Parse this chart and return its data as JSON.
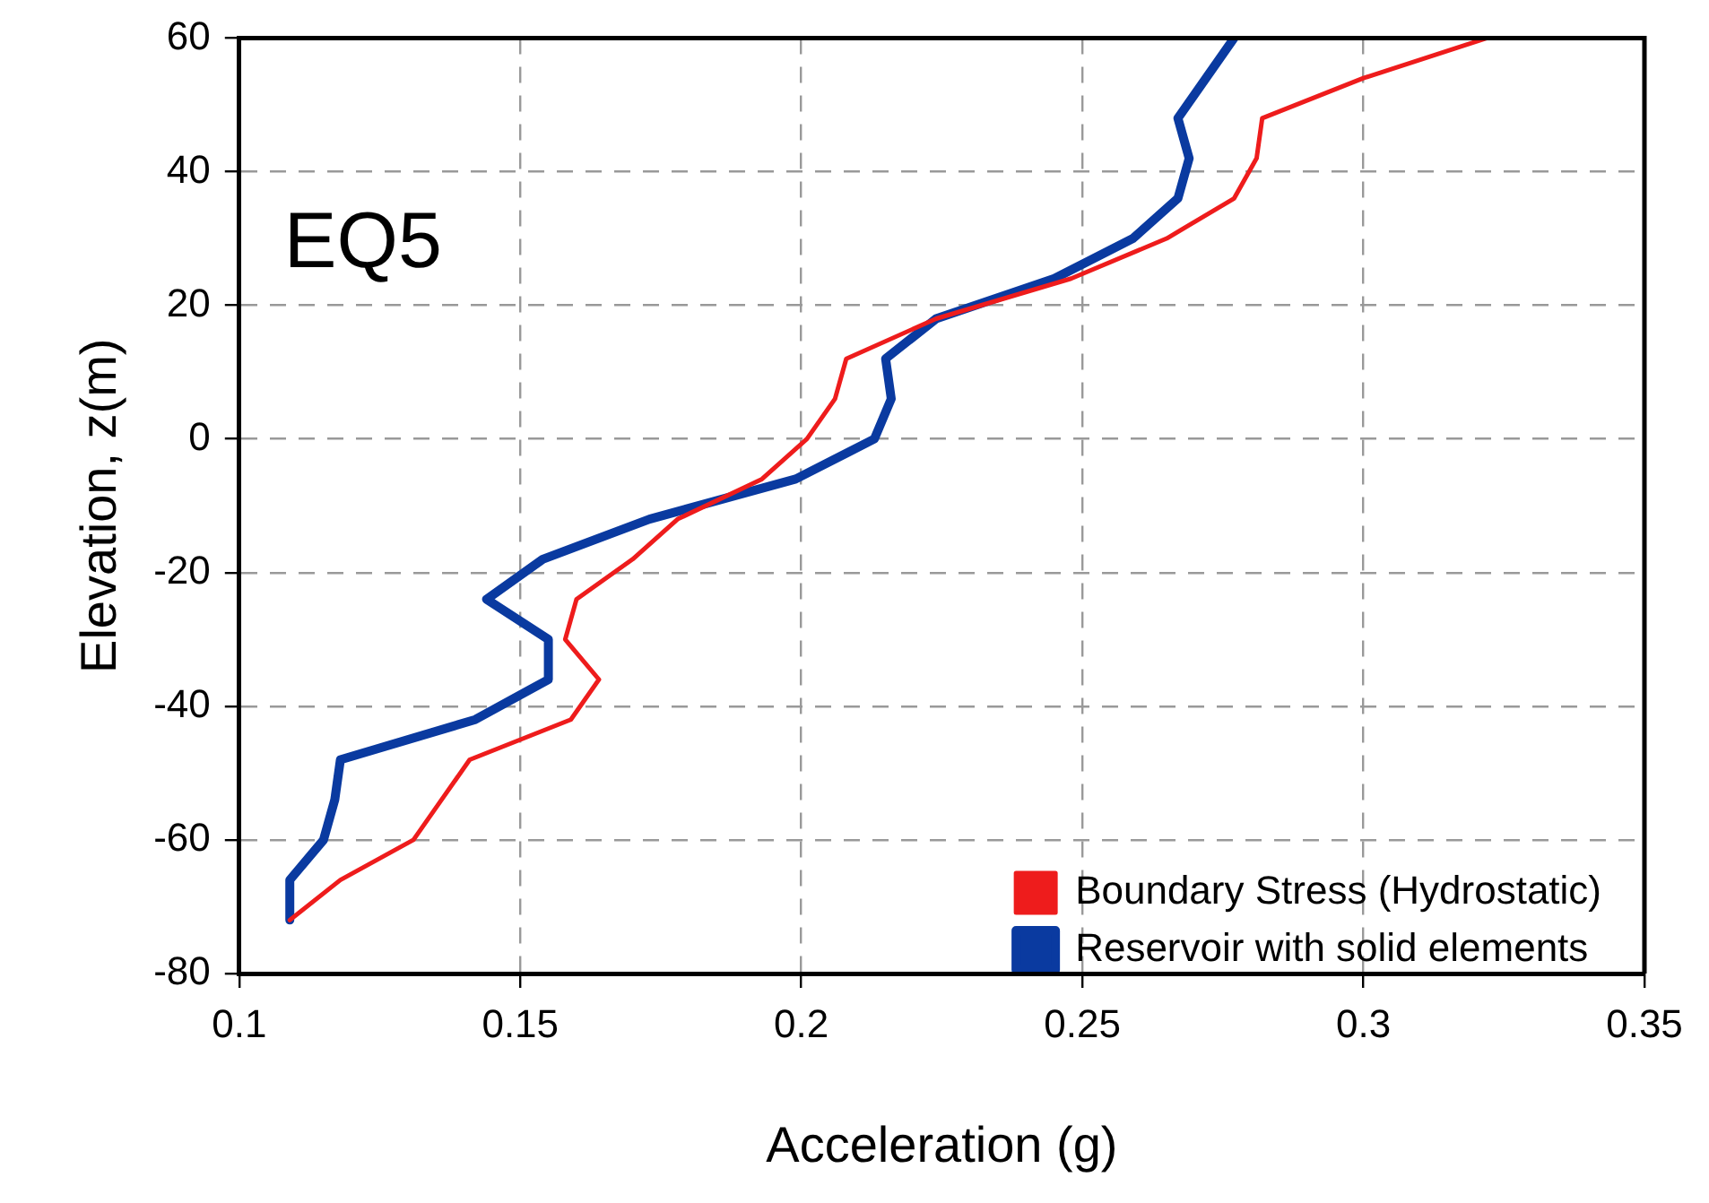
{
  "chart_data": {
    "type": "line",
    "xlabel": "Acceleration (g)",
    "ylabel": "Elevation, z(m)",
    "annotations": [
      "EQ5"
    ],
    "xlim": [
      0.1,
      0.35
    ],
    "xticks": [
      0.1,
      0.15,
      0.2,
      0.25,
      0.3,
      0.35
    ],
    "ylim": [
      -80,
      60
    ],
    "yticks": [
      -80,
      -60,
      -40,
      -20,
      0,
      20,
      40,
      60
    ],
    "grid": true,
    "legend": "bottom right",
    "marker": "none",
    "line_style": "solid",
    "series": [
      {
        "name": "Boundary Stress (Hydrostatic)",
        "color": "#ee1c1c",
        "x": [
          0.109,
          0.118,
          0.131,
          0.136,
          0.141,
          0.159,
          0.164,
          0.158,
          0.16,
          0.17,
          0.178,
          0.193,
          0.201,
          0.206,
          0.208,
          0.224,
          0.248,
          0.265,
          0.277,
          0.281,
          0.282,
          0.3,
          0.322
        ],
        "values": [
          -72,
          -66,
          -60,
          -54,
          -48,
          -42,
          -36,
          -30,
          -24,
          -18,
          -12,
          -6,
          0,
          6,
          12,
          18,
          24,
          30,
          36,
          42,
          48,
          54,
          60
        ]
      },
      {
        "name": "Reservoir with solid elements",
        "color": "#0a3aa0",
        "x": [
          0.109,
          0.109,
          0.115,
          0.117,
          0.118,
          0.142,
          0.155,
          0.155,
          0.144,
          0.154,
          0.173,
          0.199,
          0.213,
          0.216,
          0.215,
          0.224,
          0.245,
          0.259,
          0.267,
          0.269,
          0.267,
          0.272,
          0.277
        ],
        "values": [
          -72,
          -66,
          -60,
          -54,
          -48,
          -42,
          -36,
          -30,
          -24,
          -18,
          -12,
          -6,
          0,
          6,
          12,
          18,
          24,
          30,
          36,
          42,
          48,
          54,
          60
        ]
      }
    ]
  }
}
